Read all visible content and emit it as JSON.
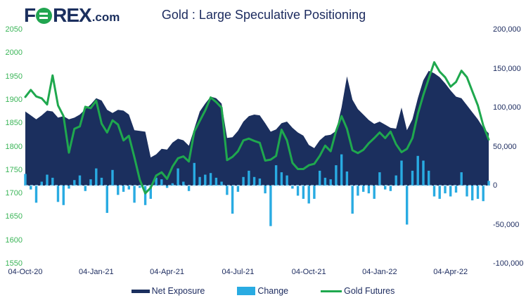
{
  "header": {
    "logo": {
      "f": "F",
      "rex": "REX",
      "com": ".com"
    },
    "title": "Gold : Large Speculative Positioning"
  },
  "colors": {
    "navy": "#1b2f5e",
    "cyan": "#29abe2",
    "green": "#1fa84e",
    "green_axis_text": "#3bb558",
    "navy_text": "#1b2a5e",
    "zero_line": "#aee4f8",
    "background": "#ffffff"
  },
  "chart_data": {
    "type": "mixed",
    "title": "Gold : Large Speculative Positioning",
    "interval": "weekly",
    "start_label": "04-Oct-20",
    "grid": "off",
    "legend_position": "bottom-center",
    "left_axis": {
      "max": 2050,
      "min": 1550,
      "ticks": [
        2050,
        2000,
        1950,
        1900,
        1850,
        1800,
        1750,
        1700,
        1650,
        1600,
        1550
      ]
    },
    "right_axis": {
      "max": 200000,
      "min": -100000,
      "tick_labels": [
        "200,000",
        "150,000",
        "100,000",
        "50,000",
        "0",
        "-50,000",
        "-100,000"
      ],
      "tick_values": [
        200000,
        150000,
        100000,
        50000,
        0,
        -50000,
        -100000
      ]
    },
    "x_axis": {
      "tick_labels": [
        "04-Oct-20",
        "04-Jan-21",
        "04-Apr-21",
        "04-Jul-21",
        "04-Oct-21",
        "04-Jan-22",
        "04-Apr-22"
      ],
      "tick_weeks": [
        0,
        13,
        26,
        39,
        52,
        65,
        78
      ]
    },
    "series": [
      {
        "name": "Net Exposure",
        "type": "area",
        "axis": "right",
        "color": "#1b2f5e",
        "values": [
          95000,
          90000,
          85000,
          90000,
          96000,
          95000,
          87000,
          89000,
          85000,
          87000,
          91000,
          98000,
          104000,
          112000,
          109000,
          97000,
          93000,
          97000,
          96000,
          91000,
          71000,
          70000,
          69000,
          36000,
          40000,
          47000,
          46000,
          55000,
          60000,
          58000,
          51000,
          73000,
          95000,
          105000,
          114000,
          112000,
          105000,
          61000,
          62000,
          70000,
          82000,
          89000,
          91000,
          90000,
          80000,
          69000,
          72000,
          80000,
          82000,
          74000,
          68000,
          64000,
          52000,
          48000,
          58000,
          64000,
          65000,
          70000,
          100000,
          140000,
          110000,
          98000,
          91000,
          84000,
          79000,
          82000,
          78000,
          74000,
          73000,
          100000,
          71000,
          85000,
          112000,
          135000,
          147000,
          144000,
          139000,
          131000,
          122000,
          114000,
          112000,
          103000,
          94000,
          85000,
          74000,
          67000
        ]
      },
      {
        "name": "Change",
        "type": "bar",
        "axis": "right",
        "color": "#29abe2",
        "values": [
          15000,
          -5000,
          -22000,
          5000,
          14000,
          10000,
          -21000,
          -25000,
          -4000,
          7000,
          13000,
          -7000,
          8000,
          22000,
          10000,
          -35000,
          20000,
          -12000,
          -8000,
          -5000,
          -22000,
          -3000,
          -25000,
          -17000,
          10000,
          8000,
          -3000,
          3000,
          22000,
          5000,
          -7000,
          29000,
          11000,
          14000,
          16000,
          10000,
          5000,
          -12000,
          -36000,
          -8000,
          11000,
          19000,
          11000,
          9000,
          -10000,
          -52000,
          26000,
          17000,
          13000,
          -4000,
          -13000,
          -17000,
          -23000,
          -17000,
          19000,
          10000,
          8000,
          26000,
          40000,
          18000,
          -36000,
          -13000,
          -8000,
          -10000,
          -17000,
          17000,
          -5000,
          -7000,
          13000,
          32000,
          -50000,
          19000,
          38000,
          32000,
          19000,
          -14000,
          -17000,
          -10000,
          -14000,
          -9000,
          17000,
          -14000,
          -19000,
          -17000,
          -20000,
          6000
        ]
      },
      {
        "name": "Gold Futures",
        "type": "line",
        "axis": "left",
        "color": "#1fa84e",
        "values": [
          1906,
          1921,
          1907,
          1903,
          1890,
          1952,
          1888,
          1865,
          1787,
          1838,
          1843,
          1885,
          1882,
          1898,
          1849,
          1830,
          1856,
          1847,
          1813,
          1823,
          1777,
          1729,
          1700,
          1712,
          1738,
          1745,
          1731,
          1757,
          1775,
          1779,
          1768,
          1832,
          1855,
          1877,
          1905,
          1895,
          1883,
          1771,
          1778,
          1790,
          1813,
          1817,
          1812,
          1808,
          1770,
          1772,
          1780,
          1836,
          1813,
          1765,
          1752,
          1752,
          1760,
          1763,
          1780,
          1802,
          1790,
          1833,
          1865,
          1838,
          1792,
          1786,
          1793,
          1807,
          1818,
          1830,
          1818,
          1832,
          1805,
          1788,
          1795,
          1818,
          1870,
          1910,
          1945,
          1980,
          1960,
          1948,
          1928,
          1938,
          1962,
          1948,
          1918,
          1888,
          1845,
          1815
        ]
      }
    ]
  },
  "legend": {
    "items": [
      {
        "label": "Net Exposure",
        "swatch": "navy-line"
      },
      {
        "label": "Change",
        "swatch": "cyan-rect"
      },
      {
        "label": "Gold Futures",
        "swatch": "green-line"
      }
    ]
  }
}
